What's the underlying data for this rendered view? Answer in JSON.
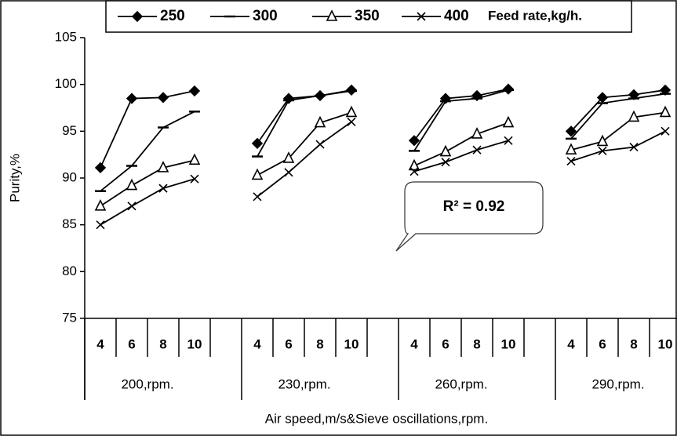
{
  "chart_data": {
    "type": "line",
    "y_label": "Purity,%",
    "x_label": "Air speed,m/s&Sieve oscillations,rpm.",
    "legend_title": "Feed rate,kg/h.",
    "annotation": "R² = 0.92",
    "groups": [
      "200,rpm.",
      "230,rpm.",
      "260,rpm.",
      "290,rpm."
    ],
    "categories": [
      "4",
      "6",
      "8",
      "10",
      null,
      "4",
      "6",
      "8",
      "10",
      null,
      "4",
      "6",
      "8",
      "10",
      null,
      "4",
      "6",
      "8",
      "10",
      null
    ],
    "ylim": [
      75,
      105
    ],
    "yticks": [
      75,
      80,
      85,
      90,
      95,
      100,
      105
    ],
    "series": [
      {
        "name": "250",
        "color": "#000000",
        "marker": "diamond",
        "values": [
          91.1,
          98.5,
          98.6,
          99.3,
          null,
          93.7,
          98.5,
          98.8,
          99.4,
          null,
          94.0,
          98.5,
          98.8,
          99.5,
          null,
          95.0,
          98.6,
          98.9,
          99.4,
          null
        ]
      },
      {
        "name": "300",
        "color": "#000000",
        "marker": "dash",
        "values": [
          88.6,
          91.3,
          95.4,
          97.1,
          null,
          92.3,
          98.3,
          98.8,
          99.3,
          null,
          92.9,
          98.2,
          98.5,
          99.4,
          null,
          94.2,
          98.0,
          98.5,
          99.0,
          null
        ]
      },
      {
        "name": "350",
        "color": "#000000",
        "marker": "triangle",
        "values": [
          87.0,
          89.2,
          91.1,
          91.9,
          null,
          90.3,
          92.1,
          95.9,
          97.0,
          null,
          91.3,
          92.8,
          94.7,
          95.9,
          null,
          93.0,
          93.9,
          96.5,
          97.0,
          null
        ]
      },
      {
        "name": "400",
        "color": "#000000",
        "marker": "cross",
        "values": [
          85.0,
          87.0,
          88.9,
          89.9,
          null,
          88.0,
          90.6,
          93.6,
          96.0,
          null,
          90.7,
          91.7,
          93.0,
          94.0,
          null,
          91.8,
          92.9,
          93.3,
          95.0,
          null
        ]
      }
    ]
  }
}
